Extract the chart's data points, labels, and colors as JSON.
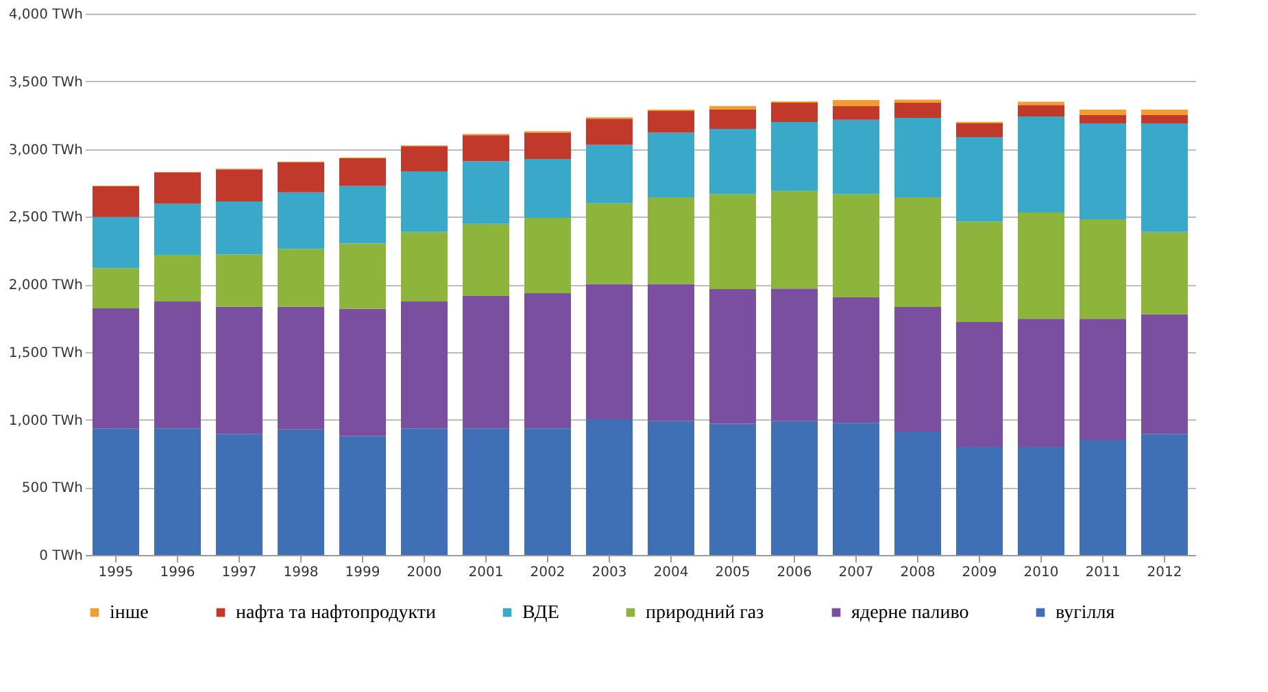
{
  "chart_data": {
    "type": "bar",
    "stacked": true,
    "categories": [
      "1995",
      "1996",
      "1997",
      "1998",
      "1999",
      "2000",
      "2001",
      "2002",
      "2003",
      "2004",
      "2005",
      "2006",
      "2007",
      "2008",
      "2009",
      "2010",
      "2011",
      "2012"
    ],
    "series": [
      {
        "name": "вугілля",
        "color": "#3f6fb5",
        "values": [
          935,
          935,
          895,
          928,
          878,
          935,
          935,
          935,
          1003,
          989,
          969,
          989,
          976,
          911,
          800,
          800,
          851,
          895
        ]
      },
      {
        "name": "ядерне паливо",
        "color": "#7b4fa0",
        "values": [
          888,
          938,
          941,
          908,
          941,
          938,
          979,
          999,
          999,
          1013,
          996,
          979,
          928,
          922,
          922,
          945,
          894,
          884
        ]
      },
      {
        "name": "природний газ",
        "color": "#8db53c",
        "values": [
          297,
          345,
          385,
          426,
          483,
          514,
          533,
          557,
          597,
          641,
          702,
          722,
          763,
          810,
          742,
          787,
          736,
          608
        ]
      },
      {
        "name": "ВДЕ",
        "color": "#3aa8c8",
        "values": [
          378,
          378,
          392,
          418,
          425,
          448,
          463,
          436,
          432,
          479,
          482,
          510,
          550,
          587,
          625,
          709,
          709,
          803
        ]
      },
      {
        "name": "нафта та нафтопродукти",
        "color": "#c0392b",
        "values": [
          226,
          229,
          236,
          223,
          206,
          186,
          192,
          195,
          193,
          159,
          142,
          142,
          100,
          112,
          101,
          84,
          61,
          61
        ]
      },
      {
        "name": "інше",
        "color": "#f39c32",
        "values": [
          5,
          5,
          5,
          5,
          5,
          5,
          10,
          10,
          10,
          10,
          27,
          10,
          45,
          23,
          10,
          24,
          40,
          40
        ]
      }
    ],
    "ylim": [
      0,
      4000
    ],
    "yticks": [
      {
        "value": 0,
        "label": "0 TWh"
      },
      {
        "value": 500,
        "label": "500 TWh"
      },
      {
        "value": 1000,
        "label": "1,000 TWh"
      },
      {
        "value": 1500,
        "label": "1,500 TWh"
      },
      {
        "value": 2000,
        "label": "2,000 TWh"
      },
      {
        "value": 2500,
        "label": "2,500 TWh"
      },
      {
        "value": 3000,
        "label": "3,000 TWh"
      },
      {
        "value": 3500,
        "label": "3,500 TWh"
      },
      {
        "value": 4000,
        "label": "4,000 TWh"
      }
    ],
    "grid": "y",
    "legend": "bottom"
  }
}
